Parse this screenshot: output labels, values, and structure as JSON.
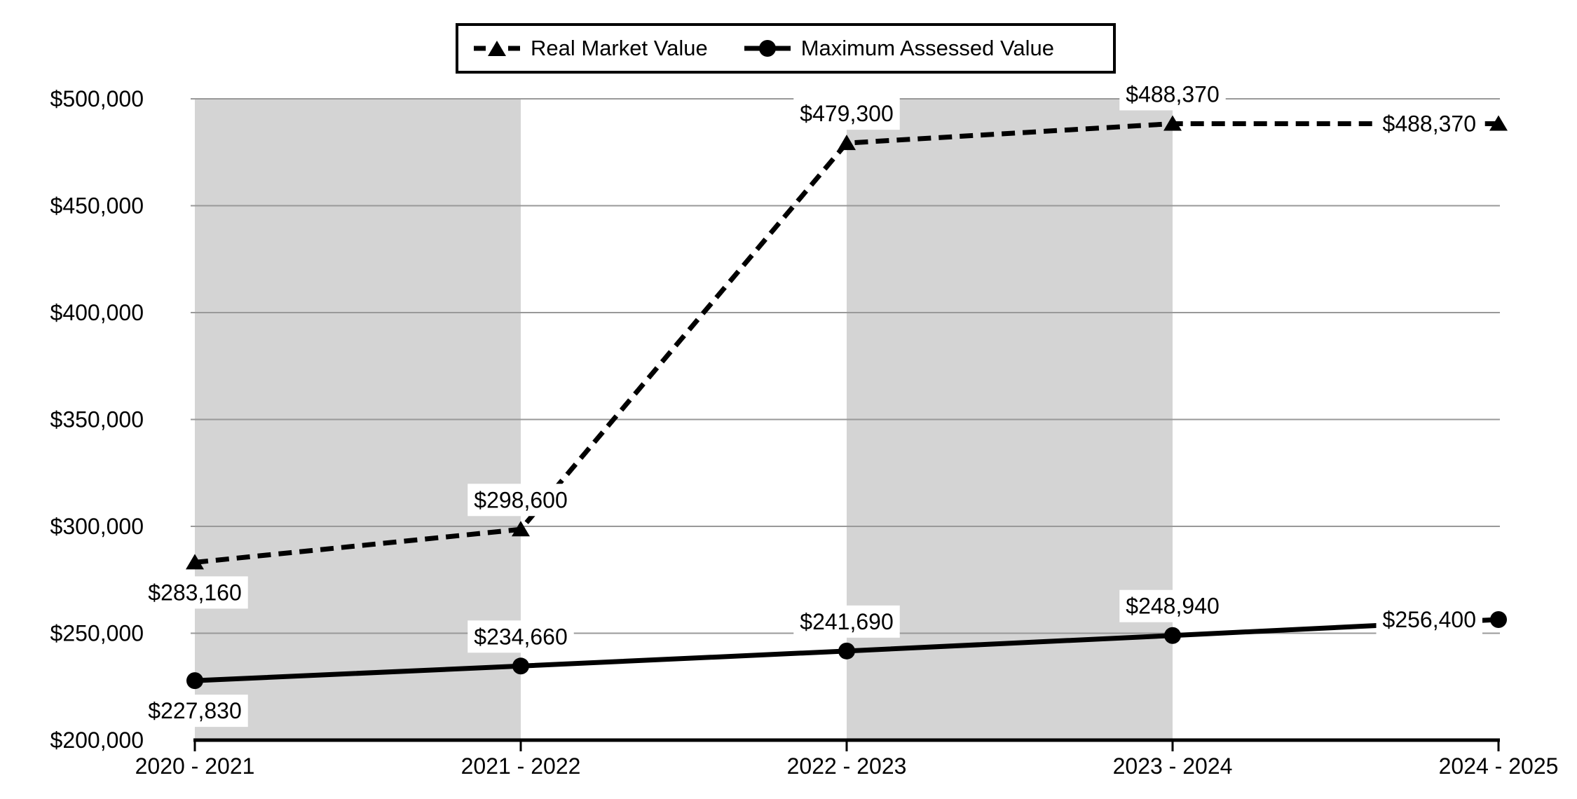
{
  "chart_data": {
    "type": "line",
    "title": "",
    "categories": [
      "2020 - 2021",
      "2021 - 2022",
      "2022 - 2023",
      "2023 - 2024",
      "2024 - 2025"
    ],
    "series": [
      {
        "name": "Real Market Value",
        "values": [
          283160,
          298600,
          479300,
          488370,
          488370
        ],
        "labels": [
          "$283,160",
          "$298,600",
          "$479,300",
          "$488,370",
          "$488,370"
        ],
        "line_style": "dashed",
        "marker": "triangle",
        "color": "#000000",
        "label_positions": [
          "below",
          "above",
          "above",
          "above",
          "left"
        ]
      },
      {
        "name": "Maximum Assessed Value",
        "values": [
          227830,
          234660,
          241690,
          248940,
          256400
        ],
        "labels": [
          "$227,830",
          "$234,660",
          "$241,690",
          "$248,940",
          "$256,400"
        ],
        "line_style": "solid",
        "marker": "circle",
        "color": "#000000",
        "label_positions": [
          "below",
          "above",
          "above",
          "above",
          "left"
        ]
      }
    ],
    "ylim": [
      200000,
      500000
    ],
    "ytick_step": 50000,
    "ytick_labels": [
      "$200,000",
      "$250,000",
      "$300,000",
      "$350,000",
      "$400,000",
      "$450,000",
      "$500,000"
    ],
    "grid": true,
    "legend_position": "top",
    "shaded_bands": [
      [
        0,
        1
      ],
      [
        2,
        3
      ]
    ],
    "colors": {
      "band": "#d4d4d4",
      "gridline": "#999999",
      "axis": "#000000",
      "label_bg": "#ffffff",
      "background": "#ffffff"
    }
  }
}
